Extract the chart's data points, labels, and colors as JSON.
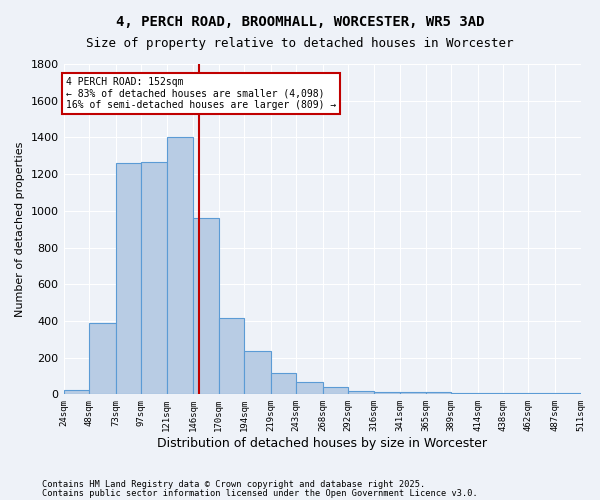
{
  "title1": "4, PERCH ROAD, BROOMHALL, WORCESTER, WR5 3AD",
  "title2": "Size of property relative to detached houses in Worcester",
  "xlabel": "Distribution of detached houses by size in Worcester",
  "ylabel": "Number of detached properties",
  "bar_edges": [
    24,
    48,
    73,
    97,
    121,
    146,
    170,
    194,
    219,
    243,
    268,
    292,
    316,
    341,
    365,
    389,
    414,
    438,
    462,
    487,
    511
  ],
  "bar_heights": [
    25,
    390,
    1260,
    1265,
    1400,
    960,
    415,
    235,
    115,
    65,
    42,
    18,
    10,
    10,
    10,
    5,
    5,
    5,
    5,
    5
  ],
  "bar_color": "#b8cce4",
  "bar_edgecolor": "#5b9bd5",
  "bg_color": "#eef2f8",
  "grid_color": "#ffffff",
  "vline_x": 152,
  "vline_color": "#c00000",
  "annotation_text": "4 PERCH ROAD: 152sqm\n← 83% of detached houses are smaller (4,098)\n16% of semi-detached houses are larger (809) →",
  "annotation_box_color": "#ffffff",
  "annotation_box_edgecolor": "#c00000",
  "tick_labels": [
    "24sqm",
    "48sqm",
    "73sqm",
    "97sqm",
    "121sqm",
    "146sqm",
    "170sqm",
    "194sqm",
    "219sqm",
    "243sqm",
    "268sqm",
    "292sqm",
    "316sqm",
    "341sqm",
    "365sqm",
    "389sqm",
    "414sqm",
    "438sqm",
    "462sqm",
    "487sqm",
    "511sqm"
  ],
  "ylim": [
    0,
    1800
  ],
  "yticks": [
    0,
    200,
    400,
    600,
    800,
    1000,
    1200,
    1400,
    1600,
    1800
  ],
  "footnote1": "Contains HM Land Registry data © Crown copyright and database right 2025.",
  "footnote2": "Contains public sector information licensed under the Open Government Licence v3.0."
}
